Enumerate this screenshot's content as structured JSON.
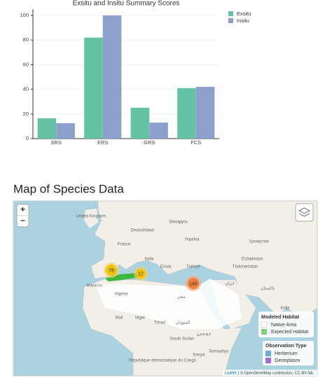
{
  "chart_data": {
    "type": "bar",
    "title": "Exsitu and Insitu Summary Scores",
    "categories": [
      "SRS",
      "ERS",
      "GRS",
      "FCS"
    ],
    "series": [
      {
        "name": "Exsitu",
        "color": "#66c2a5",
        "values": [
          16.5,
          82,
          25,
          41
        ]
      },
      {
        "name": "Insitu",
        "color": "#8da0cb",
        "values": [
          12.5,
          100,
          13,
          42
        ]
      }
    ],
    "ylim": [
      0,
      105
    ],
    "yticks": [
      0,
      20,
      40,
      60,
      80,
      100
    ],
    "grid": true
  },
  "map": {
    "title": "Map of Species Data",
    "zoom_in": "+",
    "zoom_out": "−",
    "labels": [
      "United Kingdom",
      "Deutschland",
      "Беларусь",
      "France",
      "Україна",
      "Қазақстан",
      "Italia",
      "Ελλάς",
      "Türkiye",
      "Türkmenistan",
      "O'zbekiston",
      "Algeria",
      "مصر",
      "ایران",
      "پاکستان",
      "Mali",
      "Niger",
      "Tchad",
      "السودان",
      "India",
      "South Sudan",
      "ኢትዮጵያ",
      "Somaaliya",
      "Kenya",
      "République démocratique du Congo",
      "Marocco"
    ],
    "clusters": [
      {
        "count": 78
      },
      {
        "count": 17
      },
      {
        "count": 146
      }
    ],
    "legend_habitat": {
      "title": "Modeled Habitat",
      "items": [
        "Native Area",
        "Expected Habitat"
      ]
    },
    "legend_observation": {
      "title": "Observation Type",
      "items": [
        "Herberium",
        "Germplasm"
      ]
    },
    "attribution": {
      "leaflet": "Leaflet",
      "text": "| © OpenStreetMap contributors, CC-BY-SA."
    }
  }
}
